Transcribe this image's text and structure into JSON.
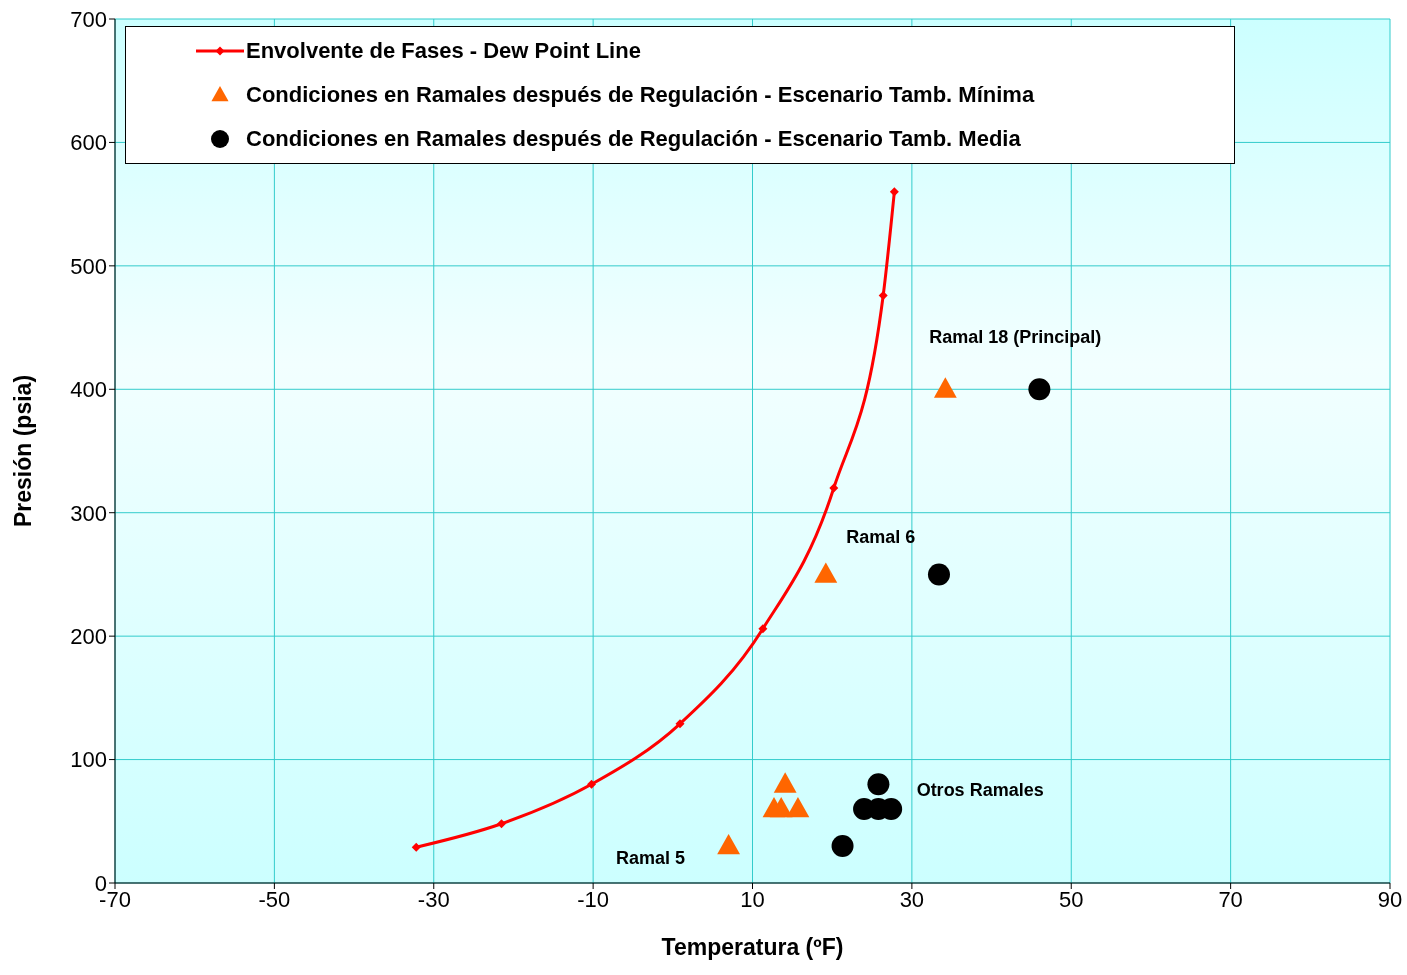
{
  "chart_data": {
    "type": "scatter",
    "xlabel": "Temperatura (ºF)",
    "ylabel": "Presión (psia)",
    "xlim": [
      -70,
      90
    ],
    "xticks": [
      -70,
      -50,
      -30,
      -10,
      10,
      30,
      50,
      70,
      90
    ],
    "ylim": [
      0,
      700
    ],
    "yticks": [
      0,
      100,
      200,
      300,
      400,
      500,
      600,
      700
    ],
    "grid": true,
    "legend": "top",
    "series": [
      {
        "name": "Envolvente de Fases - Dew Point Line",
        "type": "line",
        "marker": "diamond",
        "line_style": "solid",
        "color": "#ff0000",
        "x": [
          -32.2,
          -21.5,
          -10.2,
          0.9,
          11.3,
          20.2,
          26.4,
          27.8
        ],
        "values": [
          29,
          48,
          80,
          129,
          206,
          320,
          476,
          560
        ]
      },
      {
        "name": "Condiciones en Ramales después de Regulación - Escenario Tamb. Mínima",
        "marker": "triangle",
        "color": "#ff6600",
        "x": [
          34.2,
          19.2,
          7.0,
          14.1,
          12.7,
          13.6,
          15.7
        ],
        "values": [
          400,
          250,
          30,
          80,
          60,
          60,
          60
        ]
      },
      {
        "name": "Condiciones en Ramales después de Regulación - Escenario Tamb. Media",
        "marker": "circle",
        "color": "#000000",
        "x": [
          46.0,
          33.4,
          21.3,
          25.8,
          24.0,
          25.8,
          27.4
        ],
        "values": [
          400,
          250,
          30,
          80,
          60,
          60,
          60
        ]
      }
    ],
    "annotations": [
      {
        "text": "Ramal 18 (Principal)",
        "x": 34.2,
        "y": 400
      },
      {
        "text": "Ramal 6",
        "x": 19.2,
        "y": 250
      },
      {
        "text": "Otros Ramales",
        "x": 27.4,
        "y": 60
      },
      {
        "text": "Ramal 5",
        "x": 7.0,
        "y": 30
      }
    ]
  }
}
